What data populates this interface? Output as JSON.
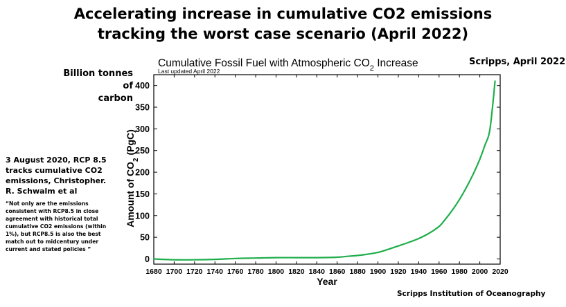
{
  "slide": {
    "title_line1": "Accelerating increase in cumulative CO2 emissions",
    "title_line2": "tracking the worst case scenario (April 2022)",
    "unit_label_line1": "Billion tonnes of",
    "unit_label_line2": "carbon",
    "source_top": "Scripps, April 2022",
    "source_bottom": "Scripps Institution of Oceanography",
    "note_heading": "3 August 2020, RCP 8.5 tracks cumulative CO2 emissions, Christopher. R. Schwalm et al",
    "note_quote": "“Not only are the emissions consistent with RCP8.5 in close agreement with historical total cumulative CO2 emissions (within 1%), but RCP8.5 is also the best match out to midcentury under current and stated policies ”",
    "colors": {
      "line": "#1fae4b",
      "text": "#000000"
    }
  },
  "chart_data": {
    "type": "line",
    "title_main": "Cumulative Fossil Fuel with Atmospheric CO",
    "title_sub": "2",
    "title_tail": " Increase",
    "subtitle": "Last updated April 2022",
    "xlabel": "Year",
    "ylabel_main": "Amount of CO",
    "ylabel_sub": "2",
    "ylabel_tail": " (PgC)",
    "xlim": [
      1680,
      2020
    ],
    "ylim": [
      -12,
      425
    ],
    "xticks": [
      1680,
      1700,
      1720,
      1740,
      1760,
      1780,
      1800,
      1820,
      1840,
      1860,
      1880,
      1900,
      1920,
      1940,
      1960,
      1980,
      2000,
      2020
    ],
    "yticks": [
      0,
      50,
      100,
      150,
      200,
      250,
      300,
      350,
      400
    ],
    "grid": false,
    "series": [
      {
        "x": [
          1680,
          1700,
          1720,
          1740,
          1760,
          1780,
          1800,
          1820,
          1840,
          1860,
          1870,
          1880,
          1890,
          1900,
          1910,
          1920,
          1930,
          1940,
          1950,
          1960,
          1965,
          1970,
          1975,
          1980,
          1985,
          1990,
          1995,
          2000,
          2005,
          2010,
          2015
        ],
        "y": [
          0,
          -2,
          -2,
          -1,
          1,
          2,
          3,
          3,
          3,
          4,
          6,
          8,
          11,
          15,
          22,
          30,
          38,
          47,
          59,
          75,
          88,
          103,
          119,
          137,
          157,
          179,
          203,
          230,
          262,
          300,
          410
        ]
      }
    ]
  }
}
